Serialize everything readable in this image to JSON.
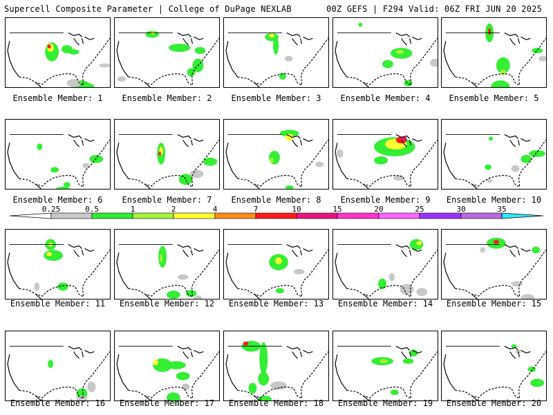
{
  "header": {
    "left": "Supercell Composite Parameter | College of DuPage NEXLAB",
    "right": "00Z GEFS | F294 Valid: 06Z FRI JUN 20 2025"
  },
  "colorbar": {
    "ticks": [
      "0.25",
      "0.5",
      "1",
      "2",
      "4",
      "7",
      "10",
      "15",
      "20",
      "25",
      "30",
      "35"
    ],
    "colors": [
      "#c8c8c8",
      "#33ee33",
      "#a6f23a",
      "#ffff33",
      "#ff8c1a",
      "#ff1a1a",
      "#e8137a",
      "#ff33cc",
      "#ff66ff",
      "#9933ff",
      "#b86be0",
      "#33e6ff"
    ]
  },
  "panels": [
    {
      "label": "Ensemble Member: 1"
    },
    {
      "label": "Ensemble Member: 2"
    },
    {
      "label": "Ensemble Member: 3"
    },
    {
      "label": "Ensemble Member: 4"
    },
    {
      "label": "Ensemble Member: 5"
    },
    {
      "label": "Ensemble Member: 6"
    },
    {
      "label": "Ensemble Member: 7"
    },
    {
      "label": "Ensemble Member: 8"
    },
    {
      "label": "Ensemble Member: 9"
    },
    {
      "label": "Ensemble Member: 10"
    },
    {
      "label": "Ensemble Member: 11"
    },
    {
      "label": "Ensemble Member: 12"
    },
    {
      "label": "Ensemble Member: 13"
    },
    {
      "label": "Ensemble Member: 14"
    },
    {
      "label": "Ensemble Member: 15"
    },
    {
      "label": "Ensemble Member: 16"
    },
    {
      "label": "Ensemble Member: 17"
    },
    {
      "label": "Ensemble Member: 18"
    },
    {
      "label": "Ensemble Member: 19"
    },
    {
      "label": "Ensemble Member: 20"
    }
  ]
}
